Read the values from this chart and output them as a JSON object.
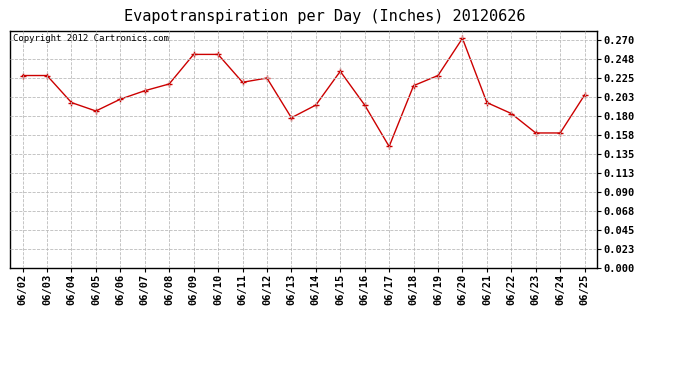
{
  "title": "Evapotranspiration per Day (Inches) 20120626",
  "copyright_text": "Copyright 2012 Cartronics.com",
  "dates": [
    "06/02",
    "06/03",
    "06/04",
    "06/05",
    "06/06",
    "06/07",
    "06/08",
    "06/09",
    "06/10",
    "06/11",
    "06/12",
    "06/13",
    "06/14",
    "06/15",
    "06/16",
    "06/17",
    "06/18",
    "06/19",
    "06/20",
    "06/21",
    "06/22",
    "06/23",
    "06/24",
    "06/25"
  ],
  "values": [
    0.228,
    0.228,
    0.196,
    0.186,
    0.2,
    0.21,
    0.218,
    0.253,
    0.253,
    0.22,
    0.225,
    0.178,
    0.193,
    0.233,
    0.193,
    0.144,
    0.216,
    0.228,
    0.272,
    0.196,
    0.183,
    0.16,
    0.16,
    0.205
  ],
  "line_color": "#cc0000",
  "marker_color": "#cc0000",
  "bg_color": "#ffffff",
  "plot_bg_color": "#ffffff",
  "grid_color": "#bbbbbb",
  "title_fontsize": 11,
  "copyright_fontsize": 6.5,
  "ytick_labels": [
    "0.000",
    "0.023",
    "0.045",
    "0.068",
    "0.090",
    "0.113",
    "0.135",
    "0.158",
    "0.180",
    "0.203",
    "0.225",
    "0.248",
    "0.270"
  ],
  "ytick_values": [
    0.0,
    0.023,
    0.045,
    0.068,
    0.09,
    0.113,
    0.135,
    0.158,
    0.18,
    0.203,
    0.225,
    0.248,
    0.27
  ],
  "ylim": [
    0.0,
    0.281
  ],
  "tick_fontsize": 7.5
}
